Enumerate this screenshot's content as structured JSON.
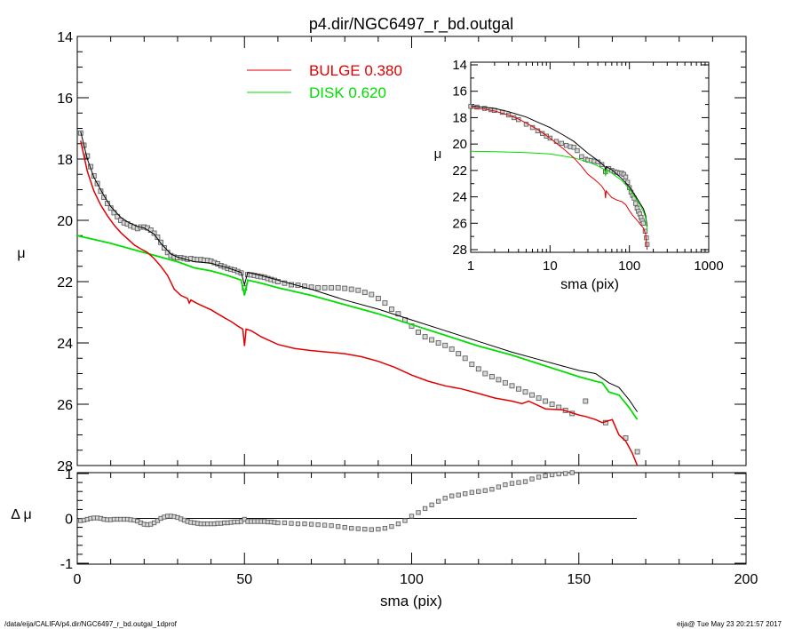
{
  "footer": {
    "path": "/data/eija/CALIFA/p4.dir/NGC6497_r_bd.outgal_1dprof",
    "stamp": "eija@  Tue May 23 20:21:57 2017"
  },
  "colors": {
    "bulge": "#e00000",
    "disk": "#00dd00",
    "total": "#000000",
    "data": "#606060"
  },
  "chart_data": [
    {
      "id": "main",
      "type": "line",
      "title": "p4.dir/NGC6497_r_bd.outgal",
      "xlabel": "",
      "ylabel": "μ",
      "xlim": [
        0,
        200
      ],
      "ylim": [
        28,
        14
      ],
      "y_reversed": true,
      "yticks": [
        "14",
        "16",
        "18",
        "20",
        "22",
        "24",
        "26",
        "28"
      ],
      "legend": {
        "placement": "top-center",
        "entries": [
          {
            "label": "BULGE",
            "value": "0.380",
            "color": "#e00000"
          },
          {
            "label": "DISK",
            "value": "0.620",
            "color": "#00dd00"
          }
        ]
      },
      "series": [
        {
          "name": "BULGE",
          "color": "#e00000",
          "x": [
            1,
            3,
            5,
            7,
            9,
            11,
            13,
            15,
            17,
            19,
            21,
            23,
            25,
            27,
            29,
            31,
            33,
            33.5,
            34,
            36,
            38,
            40,
            42,
            44,
            46,
            48,
            49.5,
            50,
            50.5,
            52,
            55,
            60,
            65,
            70,
            75,
            80,
            85,
            90,
            95,
            100,
            105,
            110,
            115,
            120,
            125,
            130,
            133,
            135,
            140,
            145,
            150,
            152,
            155,
            157,
            160,
            162,
            164,
            166,
            167.5
          ],
          "y": [
            17.4,
            18.4,
            19.05,
            19.5,
            19.85,
            20.15,
            20.4,
            20.6,
            20.8,
            20.93,
            21.05,
            21.25,
            21.5,
            21.8,
            22.25,
            22.45,
            22.55,
            22.7,
            22.6,
            22.72,
            22.82,
            22.92,
            23.05,
            23.18,
            23.3,
            23.45,
            23.55,
            24.1,
            23.55,
            23.6,
            23.8,
            24.05,
            24.18,
            24.25,
            24.3,
            24.35,
            24.45,
            24.6,
            24.8,
            25.05,
            25.25,
            25.4,
            25.5,
            25.65,
            25.8,
            25.9,
            25.98,
            25.9,
            26.15,
            26.18,
            26.35,
            26.4,
            26.5,
            26.6,
            26.5,
            27.0,
            27.2,
            27.6,
            28.0
          ]
        },
        {
          "name": "DISK",
          "color": "#00dd00",
          "x": [
            0,
            10,
            20,
            30,
            35,
            40,
            45,
            49,
            50,
            51,
            55,
            60,
            70,
            80,
            90,
            100,
            110,
            120,
            130,
            140,
            150,
            155,
            157,
            159,
            162,
            165,
            167.5
          ],
          "y": [
            20.5,
            20.75,
            21.05,
            21.35,
            21.55,
            21.65,
            21.8,
            21.95,
            22.45,
            21.95,
            22.05,
            22.2,
            22.45,
            22.75,
            23.05,
            23.4,
            23.75,
            24.1,
            24.4,
            24.75,
            25.1,
            25.25,
            25.3,
            25.6,
            25.7,
            26.1,
            26.5
          ]
        },
        {
          "name": "total",
          "color": "#000000",
          "x": [
            1,
            3,
            5,
            8,
            10,
            13,
            15,
            18,
            20,
            23,
            25,
            28,
            30,
            35,
            40,
            45,
            49,
            50,
            51,
            55,
            60,
            70,
            80,
            90,
            100,
            110,
            120,
            130,
            140,
            150,
            155,
            157,
            159,
            162,
            165,
            167.5
          ],
          "y": [
            17.1,
            18.0,
            18.6,
            19.2,
            19.55,
            19.9,
            20.05,
            20.2,
            20.25,
            20.45,
            20.75,
            21.1,
            21.2,
            21.35,
            21.4,
            21.55,
            21.7,
            22.1,
            21.7,
            21.8,
            21.95,
            22.25,
            22.6,
            22.9,
            23.25,
            23.6,
            23.95,
            24.3,
            24.6,
            24.9,
            25.0,
            25.15,
            25.3,
            25.45,
            25.85,
            26.25
          ]
        },
        {
          "name": "data",
          "color": "#606060",
          "marker": "square",
          "x": [
            1,
            2,
            3,
            4,
            5,
            6,
            7,
            8,
            9,
            10,
            11,
            12,
            13,
            14,
            15,
            16,
            17,
            18,
            19,
            20,
            21,
            22,
            23,
            24,
            25,
            26,
            27,
            28,
            29,
            30,
            31,
            32,
            33,
            34,
            35,
            36,
            37,
            38,
            39,
            40,
            41,
            42,
            43,
            44,
            45,
            46,
            47,
            48,
            49,
            50,
            51,
            52,
            53,
            54,
            55,
            56,
            57,
            58,
            59,
            60,
            62,
            64,
            66,
            68,
            70,
            72,
            74,
            76,
            78,
            80,
            82,
            84,
            86,
            88,
            90,
            92,
            94,
            96,
            98,
            100,
            102,
            104,
            106,
            108,
            110,
            112,
            114,
            116,
            118,
            120,
            122,
            124,
            126,
            128,
            130,
            132,
            134,
            136,
            138,
            140,
            142,
            144,
            146,
            148,
            152,
            158,
            164,
            167.5
          ],
          "y": [
            17.15,
            17.55,
            17.9,
            18.25,
            18.55,
            18.8,
            19.05,
            19.25,
            19.45,
            19.6,
            19.75,
            19.88,
            20.0,
            20.08,
            20.12,
            20.18,
            20.22,
            20.27,
            20.22,
            20.22,
            20.25,
            20.32,
            20.42,
            20.55,
            20.72,
            20.9,
            21.05,
            21.15,
            21.2,
            21.22,
            21.22,
            21.24,
            21.27,
            21.25,
            21.27,
            21.28,
            21.28,
            21.3,
            21.31,
            21.33,
            21.38,
            21.42,
            21.48,
            21.52,
            21.57,
            21.6,
            21.62,
            21.67,
            21.72,
            22.2,
            21.77,
            21.78,
            21.8,
            21.82,
            21.84,
            21.86,
            21.9,
            21.93,
            21.96,
            22.0,
            22.05,
            22.1,
            22.12,
            22.15,
            22.18,
            22.2,
            22.2,
            22.2,
            22.2,
            22.22,
            22.25,
            22.28,
            22.35,
            22.42,
            22.55,
            22.7,
            22.9,
            23.05,
            23.25,
            23.45,
            23.65,
            23.8,
            23.9,
            24.0,
            24.08,
            24.2,
            24.35,
            24.5,
            24.7,
            24.85,
            25.0,
            25.1,
            25.2,
            25.3,
            25.4,
            25.5,
            25.6,
            25.7,
            25.8,
            25.9,
            26.0,
            26.1,
            26.2,
            26.3,
            25.9,
            26.6,
            27.1,
            27.55
          ]
        }
      ]
    },
    {
      "id": "residual",
      "type": "scatter",
      "xlabel": "sma (pix)",
      "ylabel": "Δ μ",
      "xlim": [
        0,
        200
      ],
      "ylim": [
        -1,
        1
      ],
      "xticks": [
        "0",
        "50",
        "100",
        "150",
        "200"
      ],
      "yticks": [
        "-1",
        "0",
        "1"
      ],
      "series": [
        {
          "name": "residual",
          "color": "#606060",
          "x": [
            1,
            2,
            3,
            4,
            5,
            6,
            7,
            8,
            9,
            10,
            11,
            12,
            13,
            14,
            15,
            16,
            17,
            18,
            19,
            20,
            21,
            22,
            23,
            24,
            25,
            26,
            27,
            28,
            29,
            30,
            31,
            32,
            33,
            34,
            35,
            36,
            37,
            38,
            39,
            40,
            41,
            42,
            43,
            44,
            45,
            46,
            47,
            48,
            49,
            50,
            51,
            52,
            53,
            54,
            55,
            56,
            57,
            58,
            59,
            60,
            62,
            64,
            66,
            68,
            70,
            72,
            74,
            76,
            78,
            80,
            82,
            84,
            86,
            88,
            90,
            92,
            94,
            96,
            98,
            100,
            102,
            104,
            106,
            108,
            110,
            112,
            114,
            116,
            118,
            120,
            122,
            124,
            126,
            128,
            130,
            132,
            134,
            136,
            138,
            140,
            142,
            144,
            146,
            148,
            150,
            152
          ],
          "y": [
            -0.05,
            -0.04,
            -0.02,
            0.0,
            0.01,
            0.01,
            0.0,
            -0.02,
            -0.03,
            -0.03,
            -0.02,
            -0.02,
            -0.02,
            -0.02,
            -0.02,
            -0.03,
            -0.04,
            -0.06,
            -0.1,
            -0.13,
            -0.14,
            -0.13,
            -0.1,
            -0.05,
            0.0,
            0.03,
            0.05,
            0.05,
            0.04,
            0.02,
            -0.01,
            -0.04,
            -0.07,
            -0.09,
            -0.1,
            -0.11,
            -0.12,
            -0.12,
            -0.12,
            -0.12,
            -0.12,
            -0.11,
            -0.11,
            -0.1,
            -0.1,
            -0.09,
            -0.08,
            -0.08,
            -0.07,
            -0.02,
            -0.07,
            -0.07,
            -0.07,
            -0.07,
            -0.07,
            -0.07,
            -0.08,
            -0.08,
            -0.09,
            -0.1,
            -0.1,
            -0.11,
            -0.12,
            -0.12,
            -0.13,
            -0.14,
            -0.15,
            -0.16,
            -0.18,
            -0.2,
            -0.22,
            -0.23,
            -0.24,
            -0.25,
            -0.24,
            -0.22,
            -0.18,
            -0.12,
            -0.05,
            0.05,
            0.13,
            0.22,
            0.3,
            0.38,
            0.45,
            0.5,
            0.52,
            0.55,
            0.58,
            0.6,
            0.62,
            0.65,
            0.7,
            0.75,
            0.78,
            0.8,
            0.82,
            0.88,
            0.92,
            0.95,
            0.97,
            0.99,
            1.0,
            1.02,
            1.05,
            1.08
          ]
        }
      ]
    },
    {
      "id": "inset",
      "type": "line",
      "xlabel": "sma (pix)",
      "ylabel": "μ",
      "xscale": "log",
      "xlim": [
        1,
        1000
      ],
      "ylim": [
        28,
        14
      ],
      "y_reversed": true,
      "xticks": [
        "1",
        "10",
        "100",
        "1000"
      ],
      "yticks": [
        "14",
        "16",
        "18",
        "20",
        "22",
        "24",
        "26",
        "28"
      ],
      "series": [
        {
          "name": "BULGE",
          "color": "#e00000",
          "x": [
            1,
            1.5,
            2,
            3,
            4,
            5,
            7,
            10,
            15,
            20,
            25,
            30,
            35,
            40,
            45,
            49,
            50,
            51,
            55,
            60,
            70,
            80,
            90,
            100,
            110,
            120,
            130,
            140,
            150,
            160,
            167.5
          ],
          "y": [
            17.25,
            17.35,
            17.5,
            17.8,
            18.1,
            18.4,
            18.9,
            19.55,
            20.4,
            21.05,
            21.7,
            22.3,
            22.6,
            22.9,
            23.2,
            23.55,
            24.1,
            23.55,
            23.8,
            24.05,
            24.25,
            24.35,
            24.6,
            25.05,
            25.4,
            25.65,
            25.9,
            26.15,
            26.35,
            26.8,
            28.0
          ]
        },
        {
          "name": "DISK",
          "color": "#00dd00",
          "x": [
            1,
            2,
            5,
            10,
            20,
            30,
            40,
            49,
            50,
            51,
            60,
            80,
            100,
            120,
            140,
            150,
            160,
            167.5
          ],
          "y": [
            20.55,
            20.58,
            20.65,
            20.75,
            21.05,
            21.35,
            21.65,
            21.95,
            22.45,
            21.95,
            22.2,
            22.75,
            23.4,
            24.1,
            24.75,
            25.1,
            25.6,
            26.5
          ]
        },
        {
          "name": "total",
          "color": "#000000",
          "x": [
            1,
            2,
            3,
            5,
            7,
            10,
            15,
            20,
            25,
            30,
            40,
            49,
            50,
            51,
            60,
            80,
            100,
            120,
            140,
            150,
            160,
            167.5
          ],
          "y": [
            17.1,
            17.3,
            17.55,
            17.95,
            18.35,
            18.75,
            19.35,
            19.8,
            20.3,
            20.7,
            21.25,
            21.7,
            22.1,
            21.7,
            21.95,
            22.6,
            23.25,
            23.95,
            24.6,
            24.9,
            25.4,
            26.25
          ]
        },
        {
          "name": "data",
          "color": "#606060",
          "marker": "square",
          "x": [
            1,
            1.2,
            1.5,
            1.8,
            2,
            2.5,
            3,
            3.5,
            4,
            5,
            6,
            7,
            8,
            9,
            10,
            12,
            14,
            16,
            18,
            20,
            22,
            25,
            28,
            30,
            33,
            36,
            40,
            45,
            50,
            55,
            60,
            65,
            70,
            75,
            80,
            85,
            90,
            95,
            100,
            105,
            110,
            115,
            120,
            125,
            130,
            135,
            140,
            145,
            150,
            158,
            164,
            167.5
          ],
          "y": [
            17.15,
            17.2,
            17.3,
            17.4,
            17.45,
            17.6,
            17.8,
            18.0,
            18.15,
            18.5,
            18.75,
            19.0,
            19.2,
            19.4,
            19.55,
            19.8,
            19.95,
            20.1,
            20.2,
            20.25,
            20.5,
            20.95,
            21.15,
            21.22,
            21.25,
            21.3,
            21.35,
            21.55,
            22.1,
            21.85,
            22.0,
            22.1,
            22.15,
            22.2,
            22.2,
            22.3,
            22.5,
            22.9,
            23.3,
            23.65,
            23.9,
            24.1,
            24.5,
            24.85,
            25.1,
            25.3,
            25.55,
            25.8,
            26.0,
            26.6,
            27.1,
            27.6
          ]
        }
      ]
    }
  ]
}
